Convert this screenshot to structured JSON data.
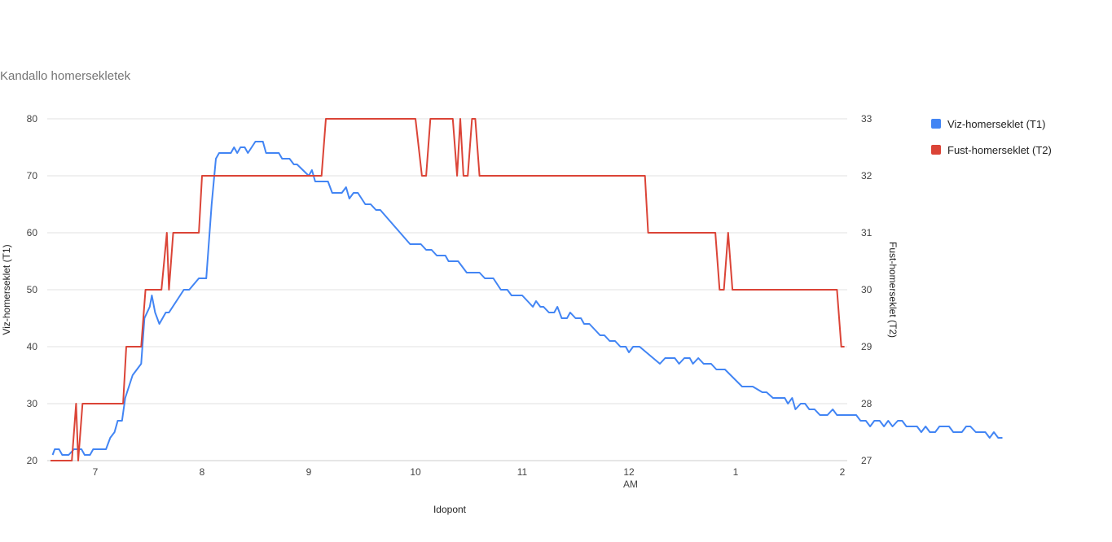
{
  "chart_data": {
    "type": "line",
    "title": "Kandallo homersekletek",
    "xlabel": "Idopont",
    "x_ticks": [
      "7",
      "8",
      "9",
      "10",
      "11",
      "12",
      "1",
      "2"
    ],
    "x_period_label": "AM",
    "y_left": {
      "label": "Viz-homerseklet (T1)",
      "min": 20,
      "max": 80,
      "ticks": [
        "20",
        "30",
        "40",
        "50",
        "60",
        "70",
        "80"
      ]
    },
    "y_right": {
      "label": "Fust-homerseklet (T2)",
      "min": 27,
      "max": 33,
      "ticks": [
        "27",
        "28",
        "29",
        "30",
        "31",
        "32",
        "33"
      ]
    },
    "legend_position": "right",
    "grid": true,
    "x_domain_hours": [
      6.58,
      14.0
    ],
    "series": [
      {
        "name": "Viz-homerseklet (T1)",
        "axis": "left",
        "color": "#4285f4",
        "points": [
          [
            6.6,
            21
          ],
          [
            6.62,
            22
          ],
          [
            6.66,
            22
          ],
          [
            6.69,
            21
          ],
          [
            6.75,
            21
          ],
          [
            6.8,
            22
          ],
          [
            6.87,
            22
          ],
          [
            6.9,
            21
          ],
          [
            6.95,
            21
          ],
          [
            6.98,
            22
          ],
          [
            7.1,
            22
          ],
          [
            7.14,
            24
          ],
          [
            7.18,
            25
          ],
          [
            7.21,
            27
          ],
          [
            7.25,
            27
          ],
          [
            7.28,
            31
          ],
          [
            7.35,
            35
          ],
          [
            7.43,
            37
          ],
          [
            7.46,
            45
          ],
          [
            7.51,
            47
          ],
          [
            7.53,
            49
          ],
          [
            7.56,
            46
          ],
          [
            7.6,
            44
          ],
          [
            7.66,
            46
          ],
          [
            7.69,
            46
          ],
          [
            7.83,
            50
          ],
          [
            7.88,
            50
          ],
          [
            7.97,
            52
          ],
          [
            8.04,
            52
          ],
          [
            8.09,
            65
          ],
          [
            8.13,
            73
          ],
          [
            8.16,
            74
          ],
          [
            8.27,
            74
          ],
          [
            8.3,
            75
          ],
          [
            8.33,
            74
          ],
          [
            8.36,
            75
          ],
          [
            8.4,
            75
          ],
          [
            8.43,
            74
          ],
          [
            8.5,
            76
          ],
          [
            8.57,
            76
          ],
          [
            8.6,
            74
          ],
          [
            8.72,
            74
          ],
          [
            8.75,
            73
          ],
          [
            8.82,
            73
          ],
          [
            8.86,
            72
          ],
          [
            8.89,
            72
          ],
          [
            9.0,
            70
          ],
          [
            9.03,
            71
          ],
          [
            9.06,
            69
          ],
          [
            9.18,
            69
          ],
          [
            9.22,
            67
          ],
          [
            9.31,
            67
          ],
          [
            9.35,
            68
          ],
          [
            9.38,
            66
          ],
          [
            9.42,
            67
          ],
          [
            9.46,
            67
          ],
          [
            9.53,
            65
          ],
          [
            9.58,
            65
          ],
          [
            9.63,
            64
          ],
          [
            9.67,
            64
          ],
          [
            9.95,
            58
          ],
          [
            10.05,
            58
          ],
          [
            10.1,
            57
          ],
          [
            10.15,
            57
          ],
          [
            10.2,
            56
          ],
          [
            10.28,
            56
          ],
          [
            10.31,
            55
          ],
          [
            10.4,
            55
          ],
          [
            10.48,
            53
          ],
          [
            10.6,
            53
          ],
          [
            10.65,
            52
          ],
          [
            10.73,
            52
          ],
          [
            10.8,
            50
          ],
          [
            10.86,
            50
          ],
          [
            10.9,
            49
          ],
          [
            11.0,
            49
          ],
          [
            11.05,
            48
          ],
          [
            11.1,
            47
          ],
          [
            11.13,
            48
          ],
          [
            11.17,
            47
          ],
          [
            11.2,
            47
          ],
          [
            11.25,
            46
          ],
          [
            11.3,
            46
          ],
          [
            11.33,
            47
          ],
          [
            11.37,
            45
          ],
          [
            11.42,
            45
          ],
          [
            11.45,
            46
          ],
          [
            11.5,
            45
          ],
          [
            11.55,
            45
          ],
          [
            11.58,
            44
          ],
          [
            11.63,
            44
          ],
          [
            11.68,
            43
          ],
          [
            11.73,
            42
          ],
          [
            11.77,
            42
          ],
          [
            11.82,
            41
          ],
          [
            11.87,
            41
          ],
          [
            11.92,
            40
          ],
          [
            11.97,
            40
          ],
          [
            12.0,
            39
          ],
          [
            12.04,
            40
          ],
          [
            12.1,
            40
          ],
          [
            12.29,
            37
          ],
          [
            12.34,
            38
          ],
          [
            12.43,
            38
          ],
          [
            12.47,
            37
          ],
          [
            12.52,
            38
          ],
          [
            12.57,
            38
          ],
          [
            12.6,
            37
          ],
          [
            12.65,
            38
          ],
          [
            12.7,
            37
          ],
          [
            12.77,
            37
          ],
          [
            12.82,
            36
          ],
          [
            12.9,
            36
          ],
          [
            13.06,
            33
          ],
          [
            13.16,
            33
          ],
          [
            13.25,
            32
          ],
          [
            13.29,
            32
          ],
          [
            13.35,
            31
          ],
          [
            13.46,
            31
          ],
          [
            13.49,
            30
          ],
          [
            13.53,
            31
          ],
          [
            13.56,
            29
          ],
          [
            13.61,
            30
          ],
          [
            13.65,
            30
          ],
          [
            13.69,
            29
          ],
          [
            13.74,
            29
          ],
          [
            13.79,
            28
          ],
          [
            13.86,
            28
          ],
          [
            13.91,
            29
          ],
          [
            13.95,
            28
          ],
          [
            14.13,
            28
          ],
          [
            14.17,
            27
          ],
          [
            14.22,
            27
          ],
          [
            14.26,
            26
          ],
          [
            14.3,
            27
          ],
          [
            14.35,
            27
          ],
          [
            14.39,
            26
          ],
          [
            14.43,
            27
          ],
          [
            14.47,
            26
          ],
          [
            14.52,
            27
          ],
          [
            14.56,
            27
          ],
          [
            14.6,
            26
          ],
          [
            14.7,
            26
          ],
          [
            14.74,
            25
          ],
          [
            14.78,
            26
          ],
          [
            14.82,
            25
          ],
          [
            14.87,
            25
          ],
          [
            14.91,
            26
          ],
          [
            15.0,
            26
          ],
          [
            15.04,
            25
          ],
          [
            15.12,
            25
          ],
          [
            15.16,
            26
          ],
          [
            15.2,
            26
          ],
          [
            15.25,
            25
          ],
          [
            15.3,
            25
          ],
          [
            15.34,
            25
          ],
          [
            15.38,
            24
          ],
          [
            15.42,
            25
          ],
          [
            15.46,
            24
          ],
          [
            15.5,
            24
          ]
        ]
      },
      {
        "name": "Fust-homerseklet (T2)",
        "axis": "right",
        "color": "#db4437",
        "points": [
          [
            6.58,
            27
          ],
          [
            6.78,
            27
          ],
          [
            6.82,
            28
          ],
          [
            6.84,
            27
          ],
          [
            6.88,
            28
          ],
          [
            7.26,
            28
          ],
          [
            7.29,
            29
          ],
          [
            7.43,
            29
          ],
          [
            7.47,
            30
          ],
          [
            7.62,
            30
          ],
          [
            7.67,
            31
          ],
          [
            7.69,
            30
          ],
          [
            7.73,
            31
          ],
          [
            7.97,
            31
          ],
          [
            8.0,
            32
          ],
          [
            9.12,
            32
          ],
          [
            9.16,
            33
          ],
          [
            10.0,
            33
          ],
          [
            10.06,
            32
          ],
          [
            10.1,
            32
          ],
          [
            10.14,
            33
          ],
          [
            10.35,
            33
          ],
          [
            10.39,
            32
          ],
          [
            10.42,
            33
          ],
          [
            10.45,
            32
          ],
          [
            10.49,
            32
          ],
          [
            10.53,
            33
          ],
          [
            10.56,
            33
          ],
          [
            10.6,
            32
          ],
          [
            12.15,
            32
          ],
          [
            12.18,
            31
          ],
          [
            12.81,
            31
          ],
          [
            12.85,
            30
          ],
          [
            12.89,
            30
          ],
          [
            12.93,
            31
          ],
          [
            12.97,
            30
          ],
          [
            13.95,
            30
          ],
          [
            13.99,
            29
          ],
          [
            14.02,
            29
          ]
        ]
      }
    ]
  }
}
